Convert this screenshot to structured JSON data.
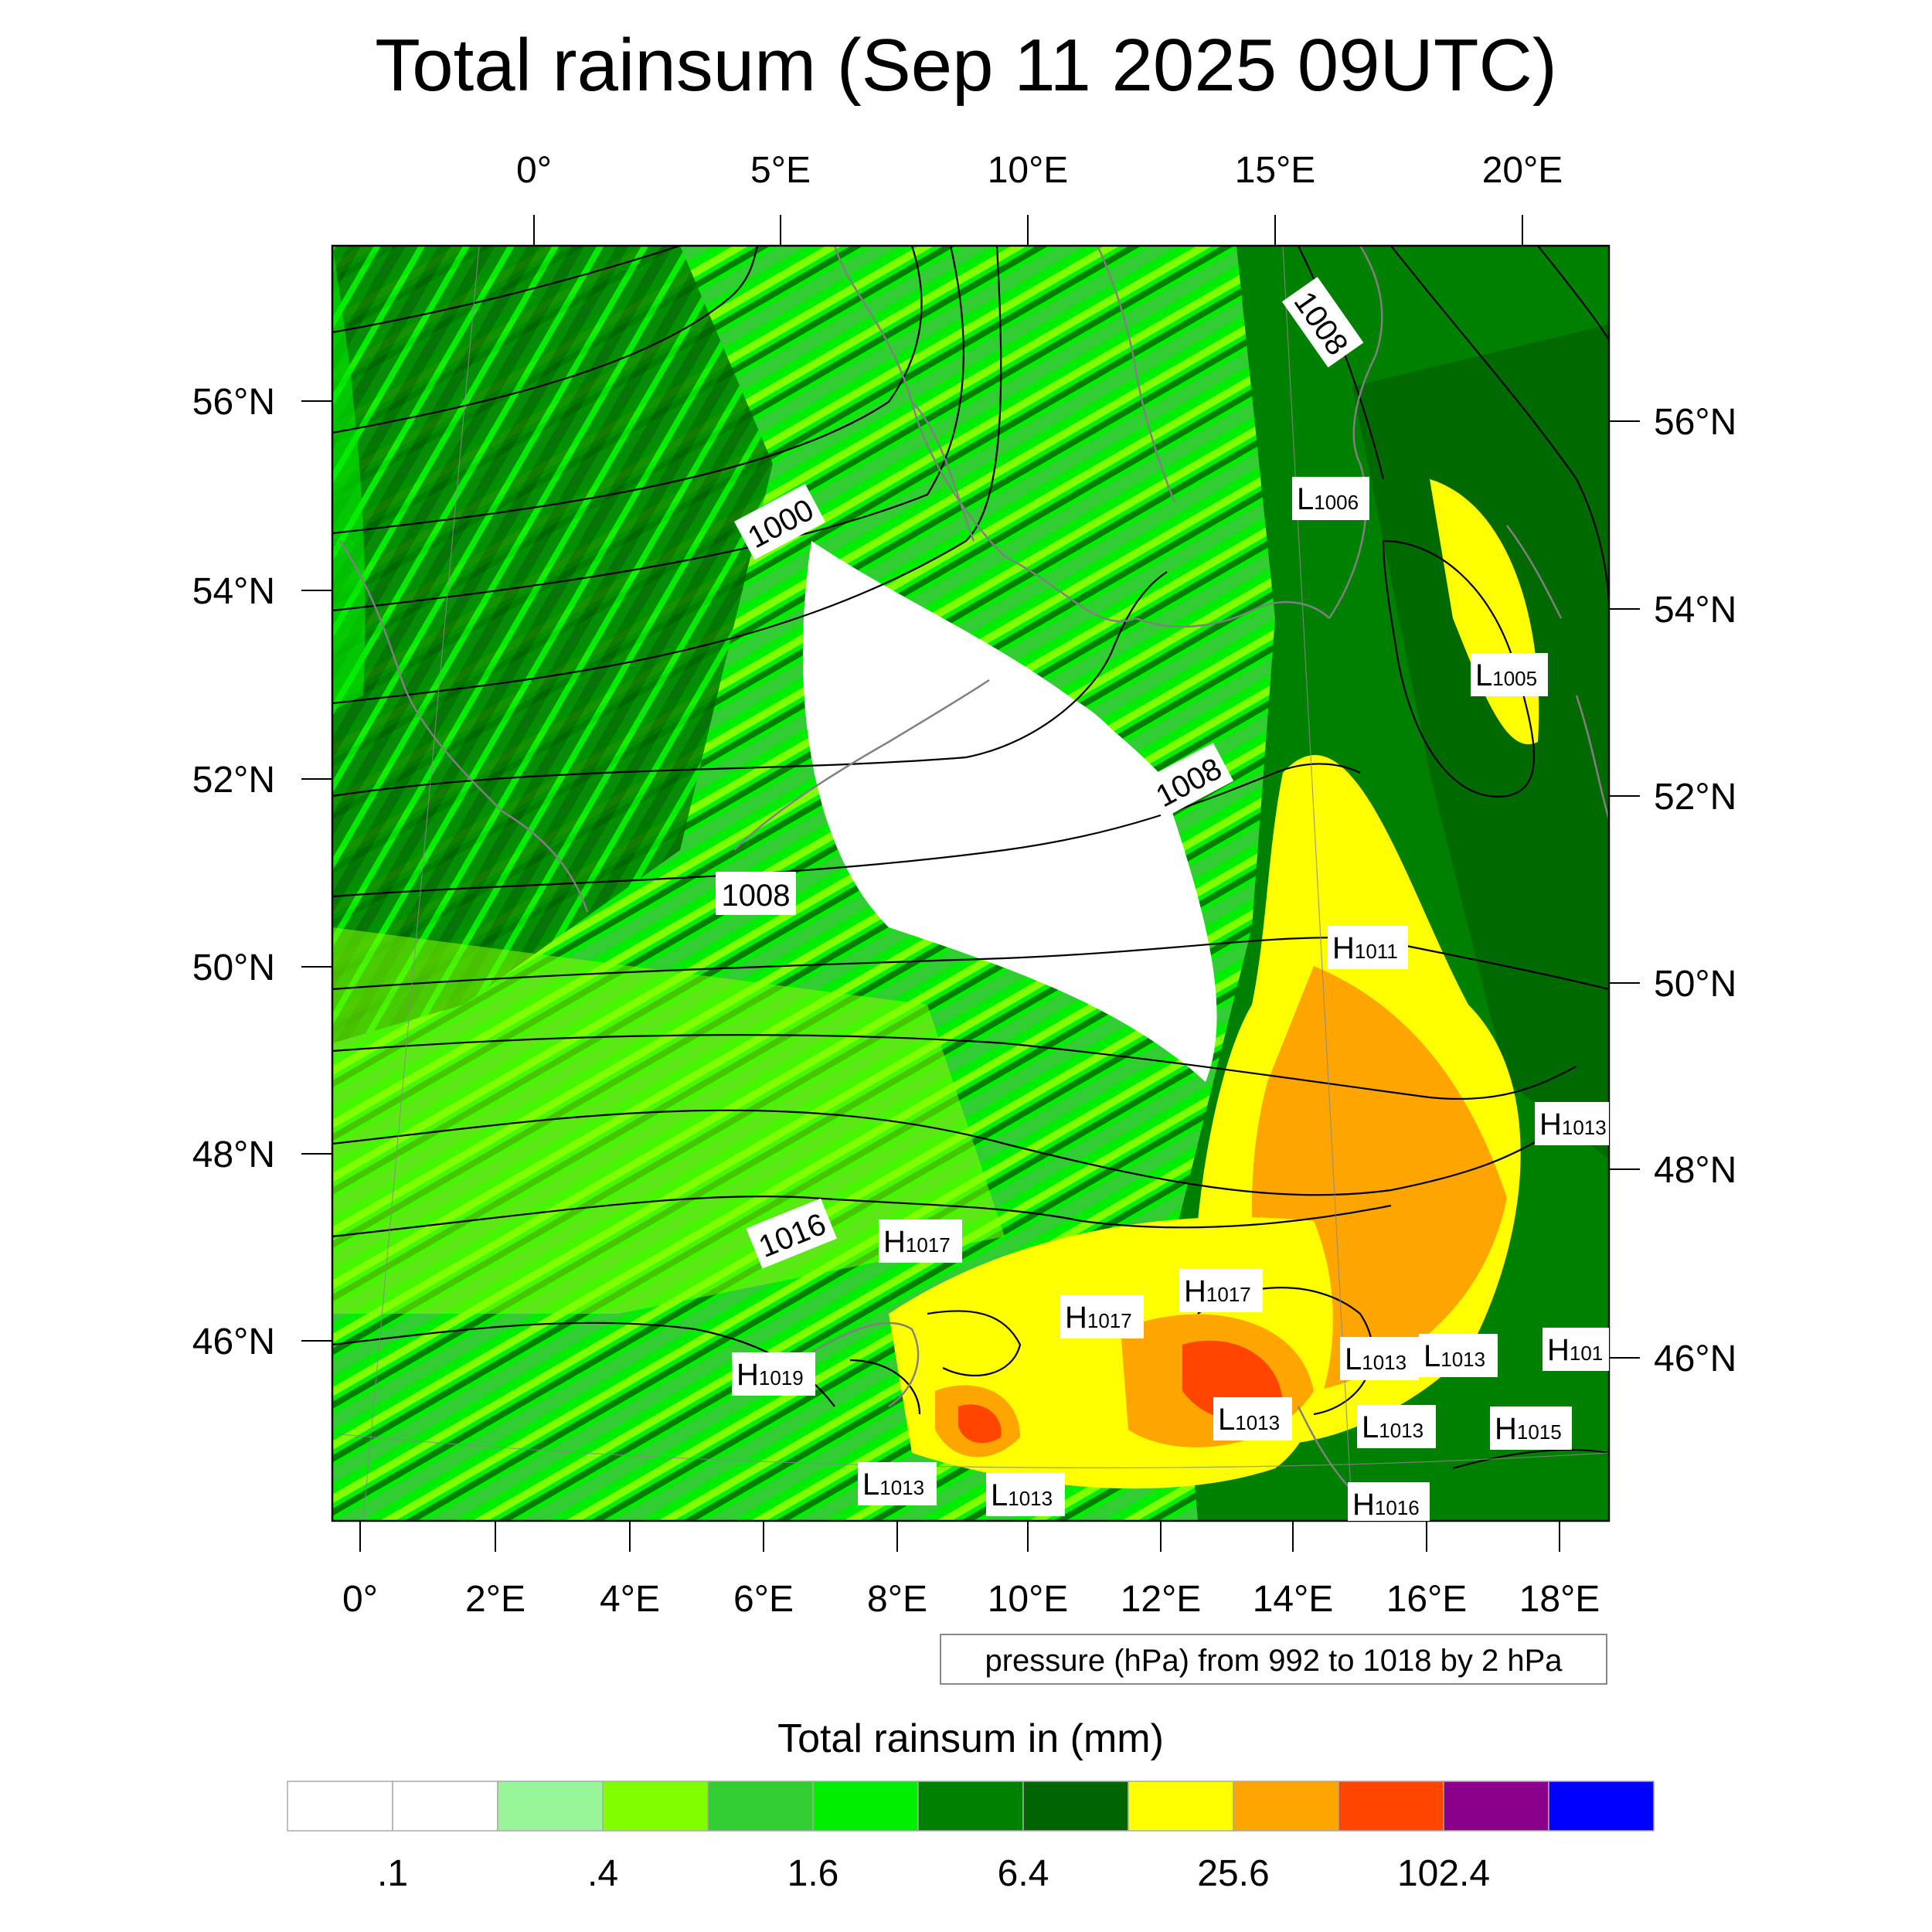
{
  "title": "Total rainsum (Sep 11 2025 09UTC)",
  "map": {
    "top_lon_labels": [
      "0°",
      "5°E",
      "10°E",
      "15°E",
      "20°E"
    ],
    "bottom_lon_labels": [
      "0°",
      "2°E",
      "4°E",
      "6°E",
      "8°E",
      "10°E",
      "12°E",
      "14°E",
      "16°E",
      "18°E"
    ],
    "left_lat_labels": [
      "46°N",
      "48°N",
      "50°N",
      "52°N",
      "54°N",
      "56°N"
    ],
    "right_lat_labels": [
      "46°N",
      "48°N",
      "50°N",
      "52°N",
      "54°N",
      "56°N"
    ],
    "isobar_labels": [
      "1000",
      "1008",
      "1008",
      "1008",
      "1016"
    ],
    "pressure_centers": [
      {
        "type": "L",
        "value": "1006"
      },
      {
        "type": "L",
        "value": "1005"
      },
      {
        "type": "H",
        "value": "1011"
      },
      {
        "type": "H",
        "value": "1013"
      },
      {
        "type": "H",
        "value": "1017"
      },
      {
        "type": "H",
        "value": "1017"
      },
      {
        "type": "H",
        "value": "1017"
      },
      {
        "type": "H",
        "value": "1019"
      },
      {
        "type": "L",
        "value": "1013"
      },
      {
        "type": "L",
        "value": "1013"
      },
      {
        "type": "L",
        "value": "1013"
      },
      {
        "type": "L",
        "value": "1013"
      },
      {
        "type": "L",
        "value": "1013"
      },
      {
        "type": "L",
        "value": "1013"
      },
      {
        "type": "H",
        "value": "1015"
      },
      {
        "type": "H",
        "value": "1016"
      },
      {
        "type": "H",
        "value": "101"
      }
    ],
    "note": "pressure (hPa) from 992 to 1018 by 2 hPa"
  },
  "legend": {
    "title": "Total rainsum in (mm)",
    "colors": [
      "#ffffff",
      "#ffffff",
      "#98f598",
      "#80ff00",
      "#32cd32",
      "#00ee00",
      "#008000",
      "#006400",
      "#ffff00",
      "#ffa500",
      "#ff4500",
      "#8b008b",
      "#0000ff"
    ],
    "labels": [
      ".1",
      ".4",
      "1.6",
      "6.4",
      "25.6",
      "102.4"
    ]
  },
  "chart_data": {
    "type": "heatmap",
    "title": "Total rainsum (Sep 11 2025 09UTC)",
    "colorbar_label": "Total rainsum in (mm)",
    "colorbar_ticks": [
      0.1,
      0.4,
      1.6,
      6.4,
      25.6,
      102.4
    ],
    "contour_variable": "pressure (hPa)",
    "contour_range": [
      992,
      1018
    ],
    "contour_interval": 2,
    "lat_range": [
      44.5,
      57.5
    ],
    "lon_range": [
      -0.5,
      21.5
    ]
  }
}
